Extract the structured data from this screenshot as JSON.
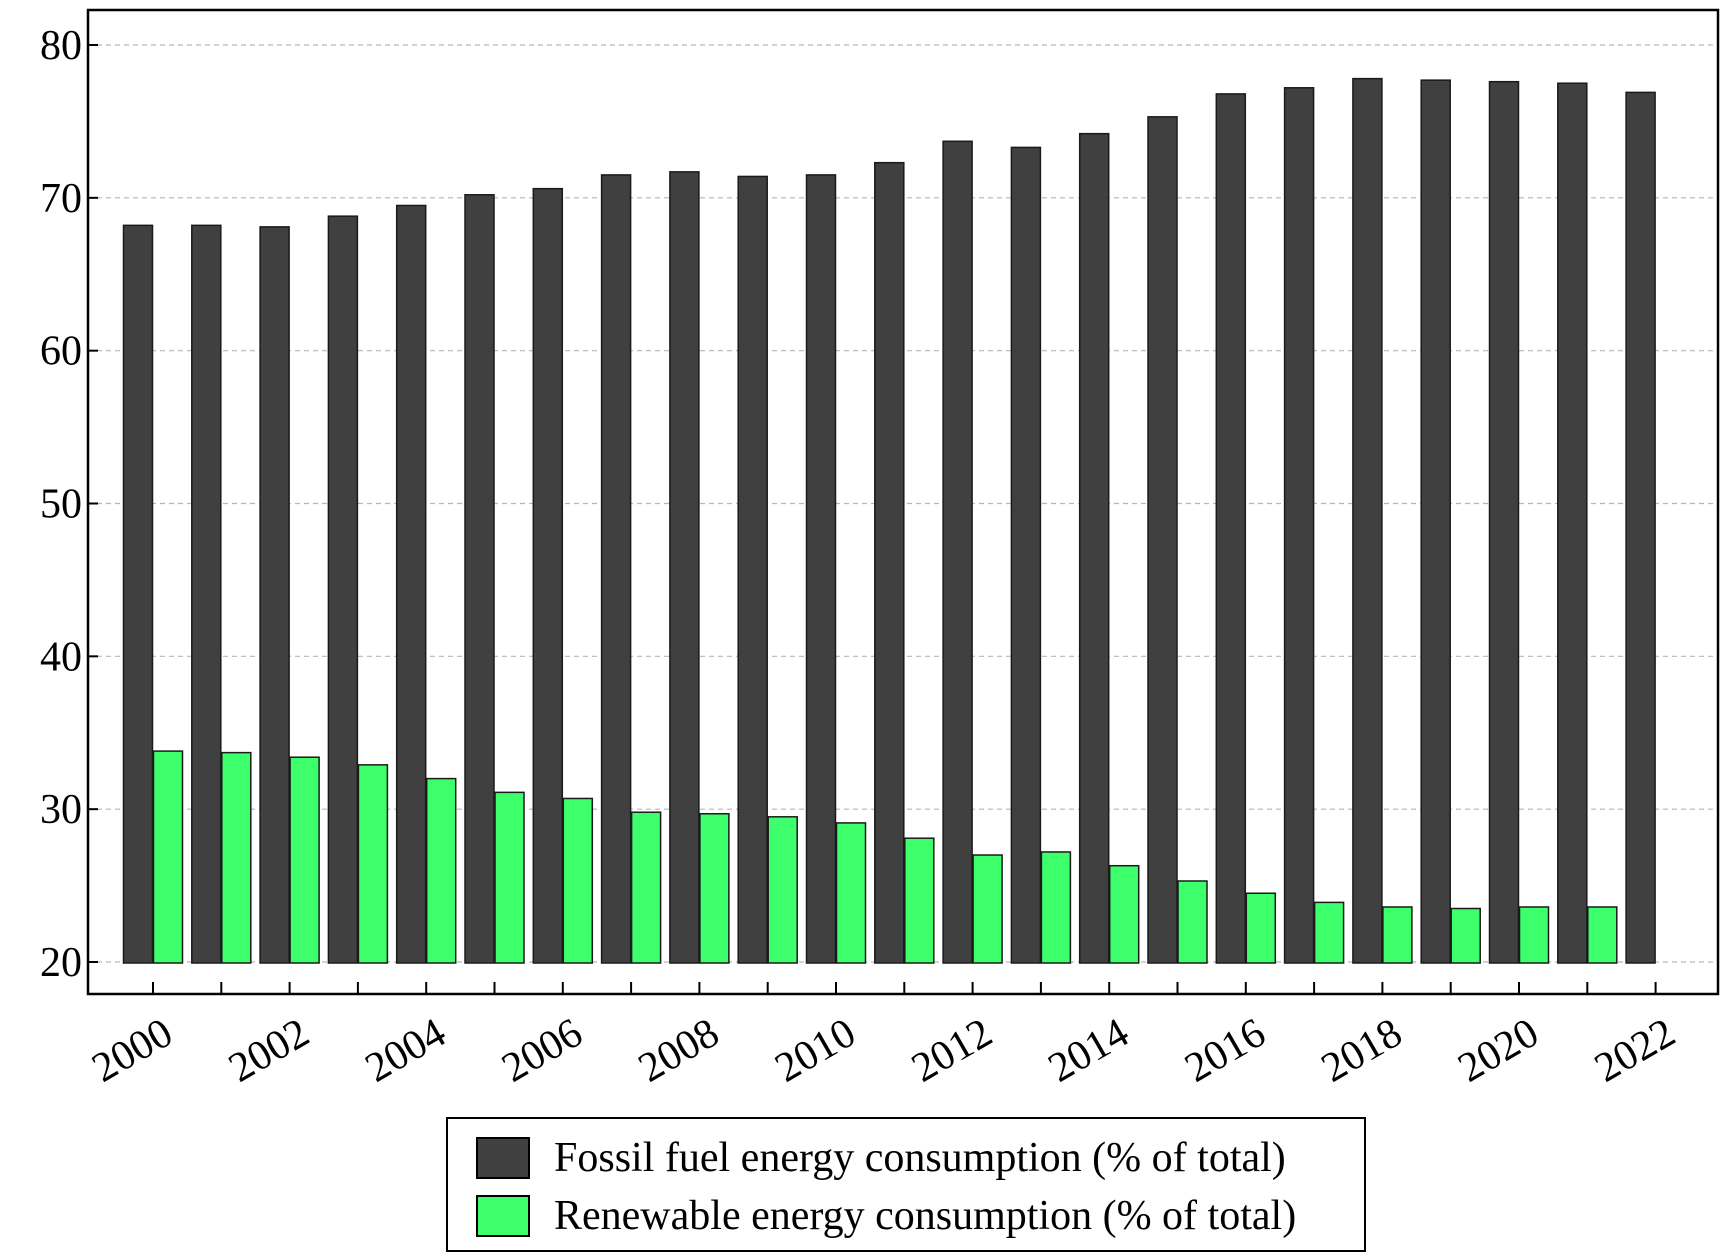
{
  "chart_data": {
    "type": "bar",
    "x": [
      "2000",
      "2001",
      "2002",
      "2003",
      "2004",
      "2005",
      "2006",
      "2007",
      "2008",
      "2009",
      "2010",
      "2011",
      "2012",
      "2013",
      "2014",
      "2015",
      "2016",
      "2017",
      "2018",
      "2019",
      "2020",
      "2021",
      "2022"
    ],
    "x_tick_labels": [
      "2000",
      "2002",
      "2004",
      "2006",
      "2008",
      "2010",
      "2012",
      "2014",
      "2016",
      "2018",
      "2020",
      "2022"
    ],
    "y_tick_labels": [
      "20",
      "30",
      "40",
      "50",
      "60",
      "70",
      "80"
    ],
    "ylim": [
      20,
      80
    ],
    "grid": true,
    "legend_position": "bottom",
    "series": [
      {
        "name": "Fossil fuel energy consumption (% of total)",
        "color": "#404040",
        "values": [
          68.2,
          68.2,
          68.1,
          68.8,
          69.5,
          70.2,
          70.6,
          71.5,
          71.7,
          71.4,
          71.5,
          72.3,
          73.7,
          73.3,
          74.2,
          75.3,
          76.8,
          77.2,
          77.8,
          77.7,
          77.6,
          77.5,
          76.9
        ]
      },
      {
        "name": "Renewable energy consumption (% of total)",
        "color": "#3dff6c",
        "values": [
          33.8,
          33.7,
          33.4,
          32.9,
          32.0,
          31.1,
          30.7,
          29.8,
          29.7,
          29.5,
          29.1,
          28.1,
          27.0,
          27.2,
          26.3,
          25.3,
          24.5,
          23.9,
          23.6,
          23.5,
          23.6,
          23.6,
          null
        ]
      }
    ]
  }
}
